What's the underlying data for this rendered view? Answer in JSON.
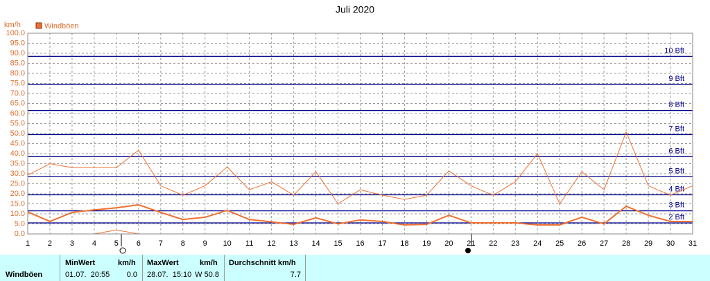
{
  "chart_data": {
    "type": "line",
    "title": "Juli 2020",
    "y_label": "km/h",
    "categories": [
      "1",
      "2",
      "3",
      "4",
      "5",
      "6",
      "7",
      "8",
      "9",
      "10",
      "11",
      "12",
      "13",
      "14",
      "15",
      "16",
      "17",
      "18",
      "19",
      "20",
      "21",
      "22",
      "23",
      "24",
      "25",
      "26",
      "27",
      "28",
      "29",
      "30",
      "31"
    ],
    "series": [
      {
        "name": "Windböen",
        "color": "#f07030",
        "width": 2,
        "values": [
          11,
          6.2,
          10.7,
          12,
          13,
          14.5,
          10.7,
          7.2,
          8.3,
          11.7,
          7.2,
          6,
          4.8,
          8,
          5,
          7,
          6.2,
          4.5,
          4.8,
          9.3,
          5.5,
          5.5,
          5.5,
          4.5,
          4.5,
          8.3,
          5,
          13.8,
          9.3,
          6.2,
          6.2
        ]
      },
      {
        "color": "#f07030",
        "width": 1,
        "values": [
          29.3,
          35,
          33,
          33,
          33,
          41.7,
          24,
          19.3,
          24,
          33.4,
          22,
          26,
          19.3,
          31,
          15,
          22,
          19.3,
          17.2,
          19.3,
          31.4,
          24,
          19.3,
          26,
          40,
          15,
          31,
          22,
          50.8,
          24,
          19.3,
          24
        ]
      },
      {
        "color": "#f07030",
        "width": 1,
        "values": [
          0,
          0,
          0,
          0,
          2,
          0,
          0,
          0,
          0,
          0,
          0,
          0,
          0,
          0,
          0,
          0,
          0,
          0,
          0,
          0,
          0,
          0,
          0,
          0,
          0,
          0,
          0,
          0,
          0,
          0,
          0
        ]
      }
    ],
    "ylim": [
      0,
      100
    ],
    "yticks": [
      {
        "value": 0,
        "label": "0.0"
      },
      {
        "value": 5,
        "label": "5.0"
      },
      {
        "value": 10,
        "label": "10.0"
      },
      {
        "value": 15,
        "label": "15.0"
      },
      {
        "value": 20,
        "label": "20.0"
      },
      {
        "value": 25,
        "label": "25.0"
      },
      {
        "value": 30,
        "label": "30.0"
      },
      {
        "value": 35,
        "label": "35.0"
      },
      {
        "value": 40,
        "label": "40.0"
      },
      {
        "value": 45,
        "label": "45.0"
      },
      {
        "value": 50,
        "label": "50.0"
      },
      {
        "value": 55,
        "label": "55.0"
      },
      {
        "value": 60,
        "label": "60.0"
      },
      {
        "value": 65,
        "label": "65.0"
      },
      {
        "value": 70,
        "label": "70.0"
      },
      {
        "value": 75,
        "label": "75.0"
      },
      {
        "value": 80,
        "label": "80.0"
      },
      {
        "value": 85,
        "label": "85.0"
      },
      {
        "value": 90,
        "label": "90.0"
      },
      {
        "value": 95,
        "label": "95.0"
      },
      {
        "value": 100,
        "label": "100.0"
      }
    ],
    "bft_lines": [
      {
        "value": 5.5,
        "label": "2 Bft"
      },
      {
        "value": 11.5,
        "label": "3 Bft"
      },
      {
        "value": 19.5,
        "label": "4 Bft"
      },
      {
        "value": 28.5,
        "label": "5 Bft"
      },
      {
        "value": 38.5,
        "label": "6 Bft"
      },
      {
        "value": 49.5,
        "label": "7 Bft"
      },
      {
        "value": 61.5,
        "label": "8 Bft"
      },
      {
        "value": 74.5,
        "label": "9 Bft"
      },
      {
        "value": 88.5,
        "label": "10 Bft"
      }
    ],
    "bft_color": "#00008b",
    "grid": true
  },
  "table": {
    "row_label": "Windböen",
    "headers": [
      "MinWert",
      "km/h",
      "MaxWert",
      "km/h",
      "Durchschnitt km/h"
    ],
    "cells": [
      "01.07.  20:55",
      "0.0",
      "28.07.  15:10",
      "W 50.8",
      "7.7"
    ]
  }
}
